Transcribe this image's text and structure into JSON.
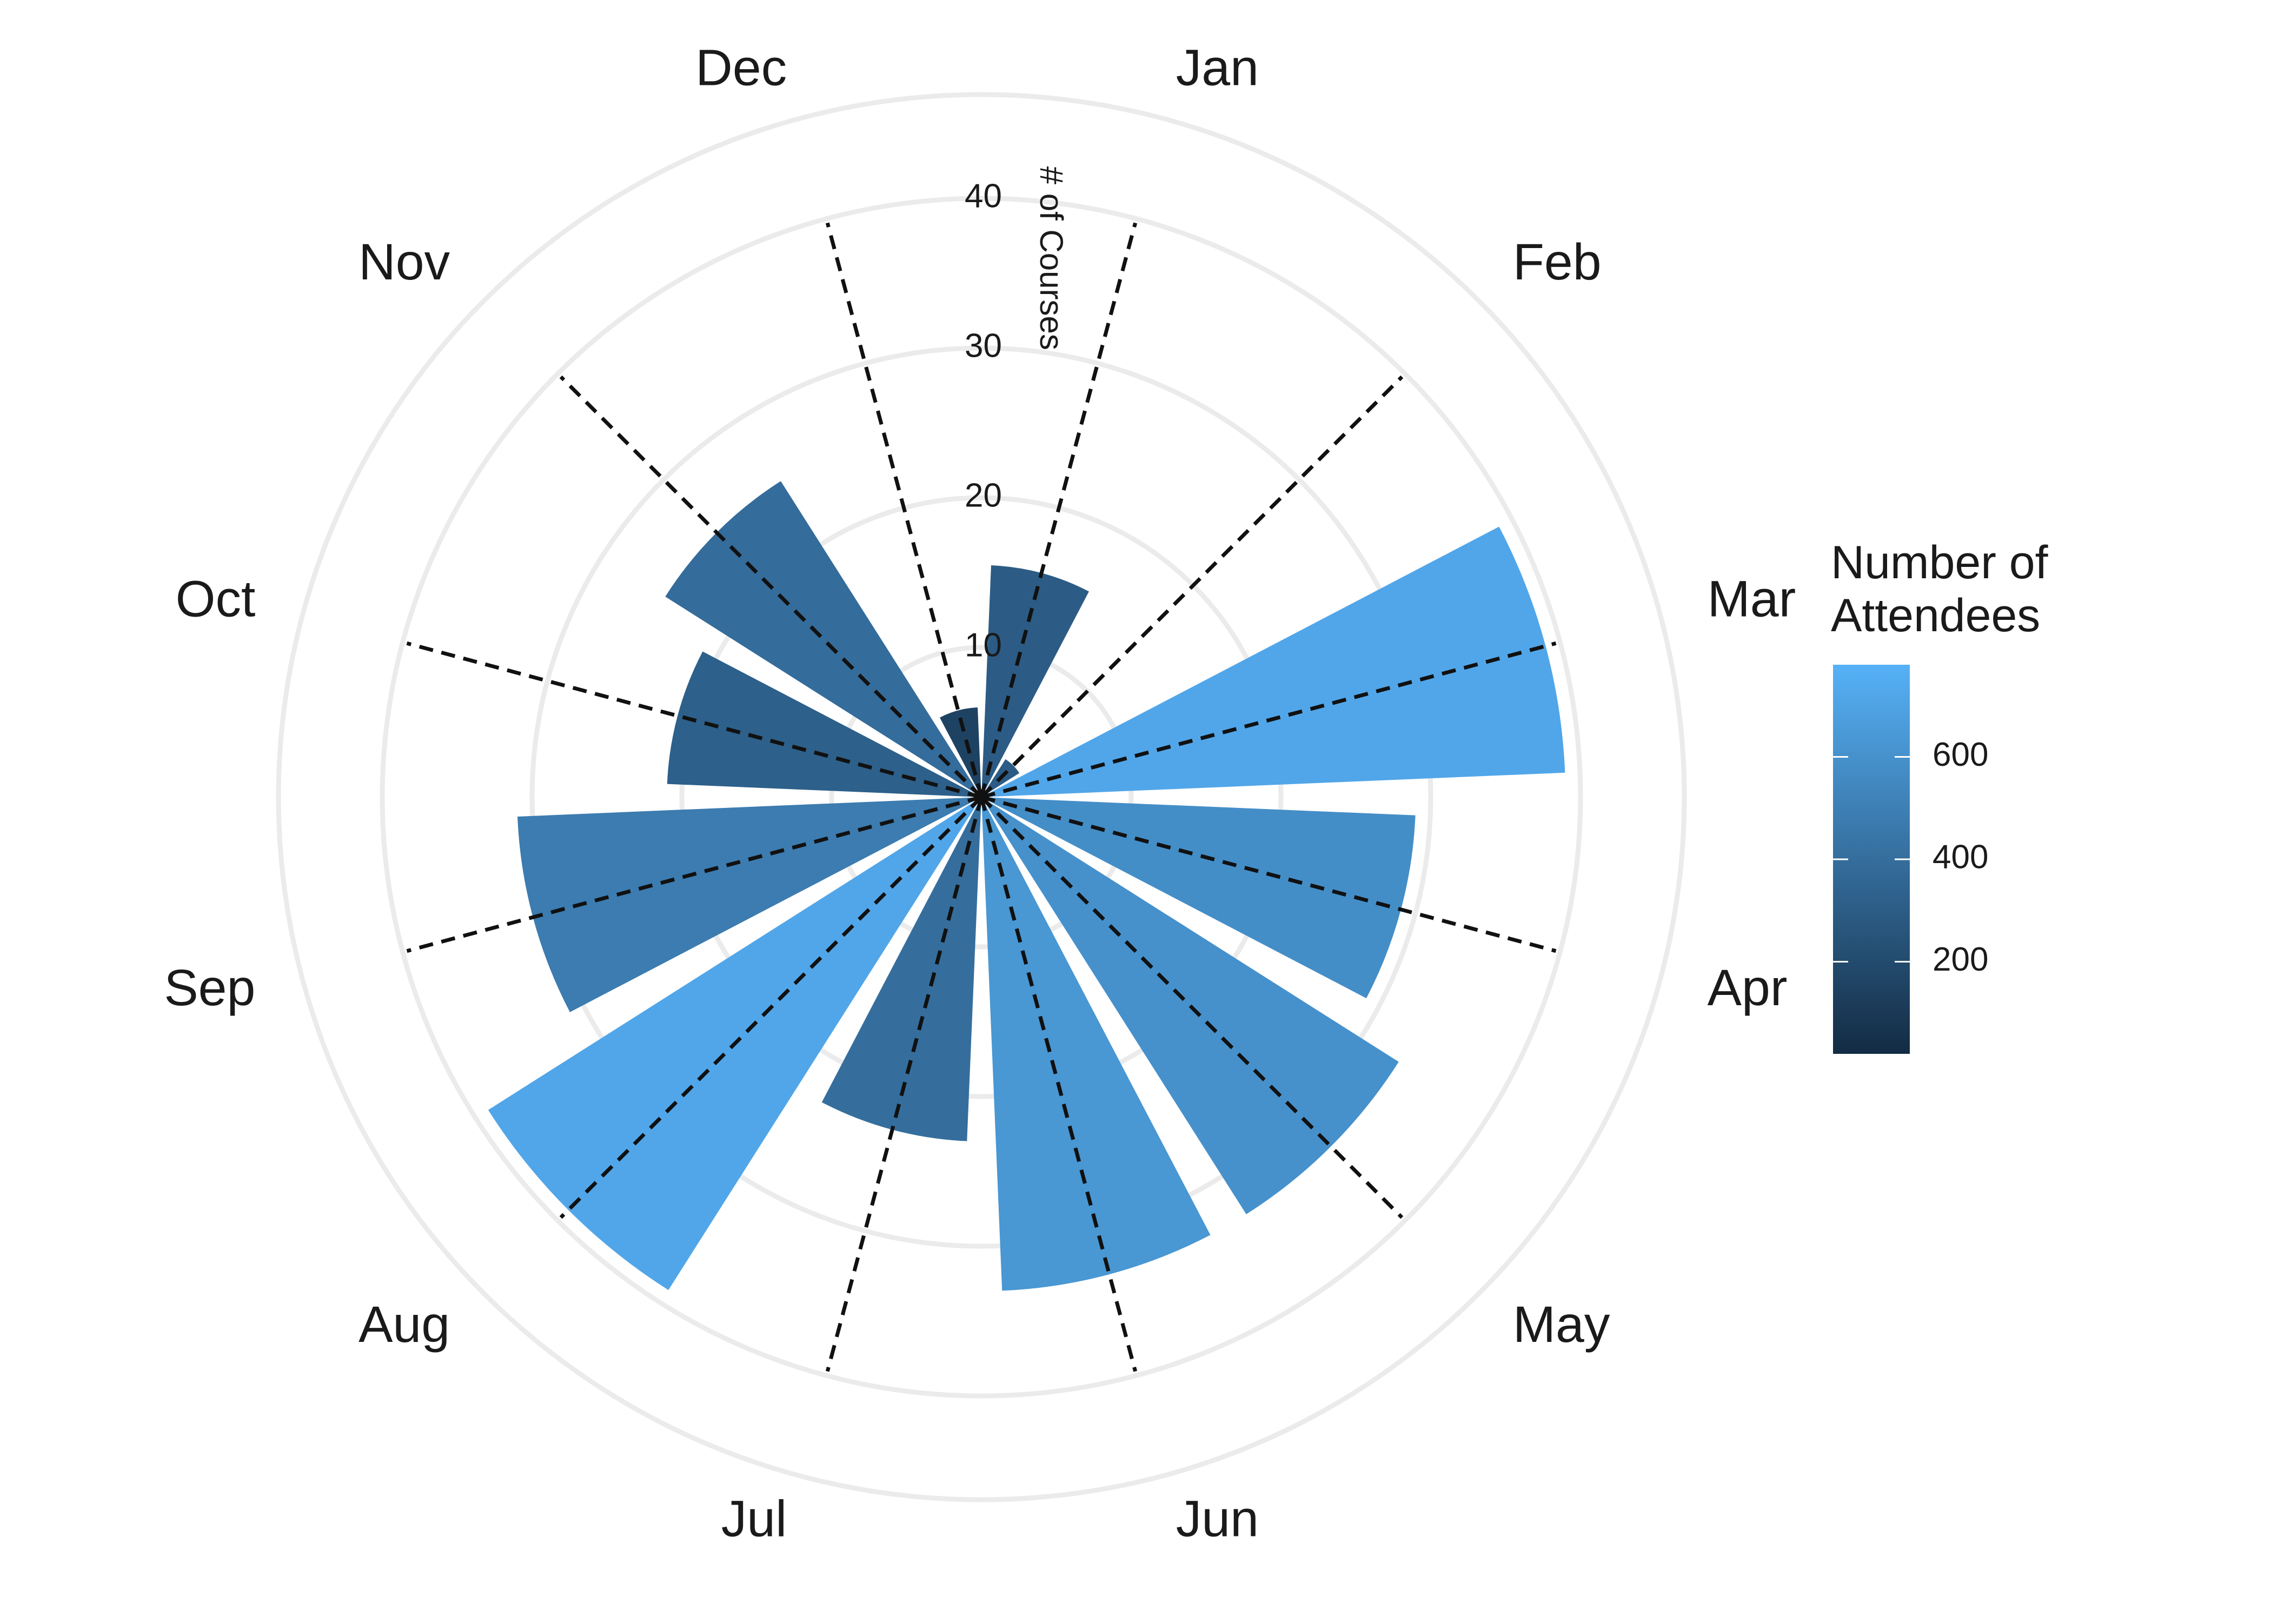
{
  "chart_data": {
    "type": "bar",
    "coord": "polar",
    "categories": [
      "Jan",
      "Feb",
      "Mar",
      "Apr",
      "May",
      "Jun",
      "Jul",
      "Aug",
      "Sep",
      "Oct",
      "Nov",
      "Dec"
    ],
    "values": [
      15.5,
      3,
      39,
      29,
      33,
      33,
      23,
      39,
      31,
      21,
      25,
      6
    ],
    "attendees": [
      300,
      300,
      720,
      580,
      600,
      630,
      400,
      720,
      480,
      320,
      390,
      150
    ],
    "radial_label": "# of Courses",
    "radial_ticks": [
      10,
      20,
      30,
      40
    ],
    "ylim": [
      0,
      47
    ],
    "legend": {
      "title_lines": [
        "Number of",
        "Attendees"
      ],
      "ticks": [
        200,
        400,
        600
      ],
      "range": [
        20,
        780
      ],
      "color_low": "#132b43",
      "color_high": "#56b1f7",
      "placement": "right"
    }
  }
}
